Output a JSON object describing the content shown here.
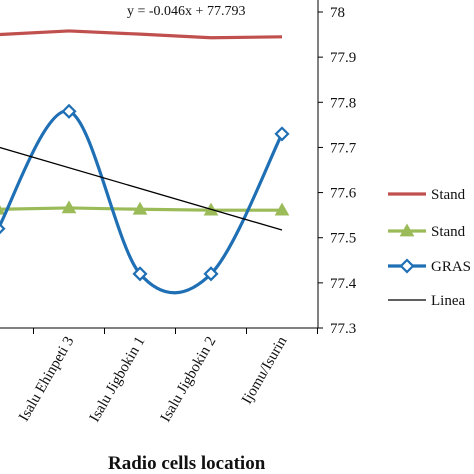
{
  "chart_data": {
    "type": "line",
    "xlabel": "Radio cells location",
    "categories": [
      "",
      "Isalu Ehinpeti 3",
      "Isalu Jigbokin 1",
      "Isalu Jigbokin 2",
      "Ijomu/Isurin"
    ],
    "y_ticks": [
      "77.3",
      "77.4",
      "77.5",
      "77.6",
      "77.7",
      "77.8",
      "77.9",
      "78"
    ],
    "ylim": [
      77.3,
      78
    ],
    "annotation": "y = -0.046x + 77.793",
    "series": [
      {
        "name": "Stand",
        "color": "#c0504d",
        "marker": "none",
        "values": [
          77.95,
          77.958,
          77.951,
          77.943,
          77.945
        ]
      },
      {
        "name": "Stand",
        "color": "#9bbb59",
        "marker": "triangle",
        "values": [
          77.563,
          77.566,
          77.563,
          77.561,
          77.561
        ]
      },
      {
        "name": "GRAS",
        "color": "#1f6fb5",
        "marker": "diamond",
        "values": [
          77.52,
          77.78,
          77.42,
          77.42,
          77.73
        ]
      },
      {
        "name": "Linea",
        "color": "#000000",
        "marker": "none",
        "values": [
          77.701,
          77.655,
          77.609,
          77.563,
          77.517
        ]
      }
    ],
    "legend_position": "right",
    "grid": false
  }
}
